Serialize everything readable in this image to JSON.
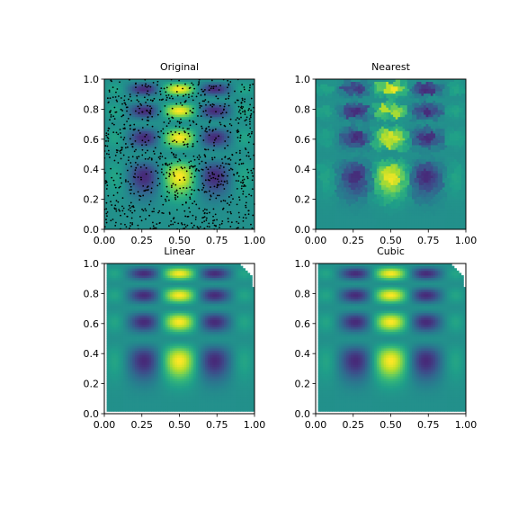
{
  "colors": {
    "viridis": [
      "#440154",
      "#482878",
      "#3e4989",
      "#31688e",
      "#26828e",
      "#1f9e89",
      "#35b779",
      "#6ece58",
      "#b5de2b",
      "#fde725"
    ],
    "sample_points": "#000000"
  },
  "chart_data": [
    {
      "type": "heatmap",
      "title": "Original",
      "xlim": [
        0,
        1
      ],
      "ylim": [
        0,
        1
      ],
      "xticks": [
        "0.00",
        "0.25",
        "0.50",
        "0.75",
        "1.00"
      ],
      "yticks": [
        "0.0",
        "0.2",
        "0.4",
        "0.6",
        "0.8",
        "1.0"
      ],
      "grid": false,
      "overlay": "scatter of sample points",
      "sample_point_count": 1000
    },
    {
      "type": "heatmap",
      "title": "Nearest",
      "xlim": [
        0,
        1
      ],
      "ylim": [
        0,
        1
      ],
      "xticks": [
        "0.00",
        "0.25",
        "0.50",
        "0.75",
        "1.00"
      ],
      "yticks": [
        "0.0",
        "0.2",
        "0.4",
        "0.6",
        "0.8",
        "1.0"
      ],
      "grid": false
    },
    {
      "type": "heatmap",
      "title": "Linear",
      "xlim": [
        0,
        1
      ],
      "ylim": [
        0,
        1
      ],
      "xticks": [
        "0.00",
        "0.25",
        "0.50",
        "0.75",
        "1.00"
      ],
      "yticks": [
        "0.0",
        "0.2",
        "0.4",
        "0.6",
        "0.8",
        "1.0"
      ],
      "grid": false
    },
    {
      "type": "heatmap",
      "title": "Cubic",
      "xlim": [
        0,
        1
      ],
      "ylim": [
        0,
        1
      ],
      "xticks": [
        "0.00",
        "0.25",
        "0.50",
        "0.75",
        "1.00"
      ],
      "yticks": [
        "0.0",
        "0.2",
        "0.4",
        "0.6",
        "0.8",
        "1.0"
      ],
      "grid": false
    }
  ]
}
